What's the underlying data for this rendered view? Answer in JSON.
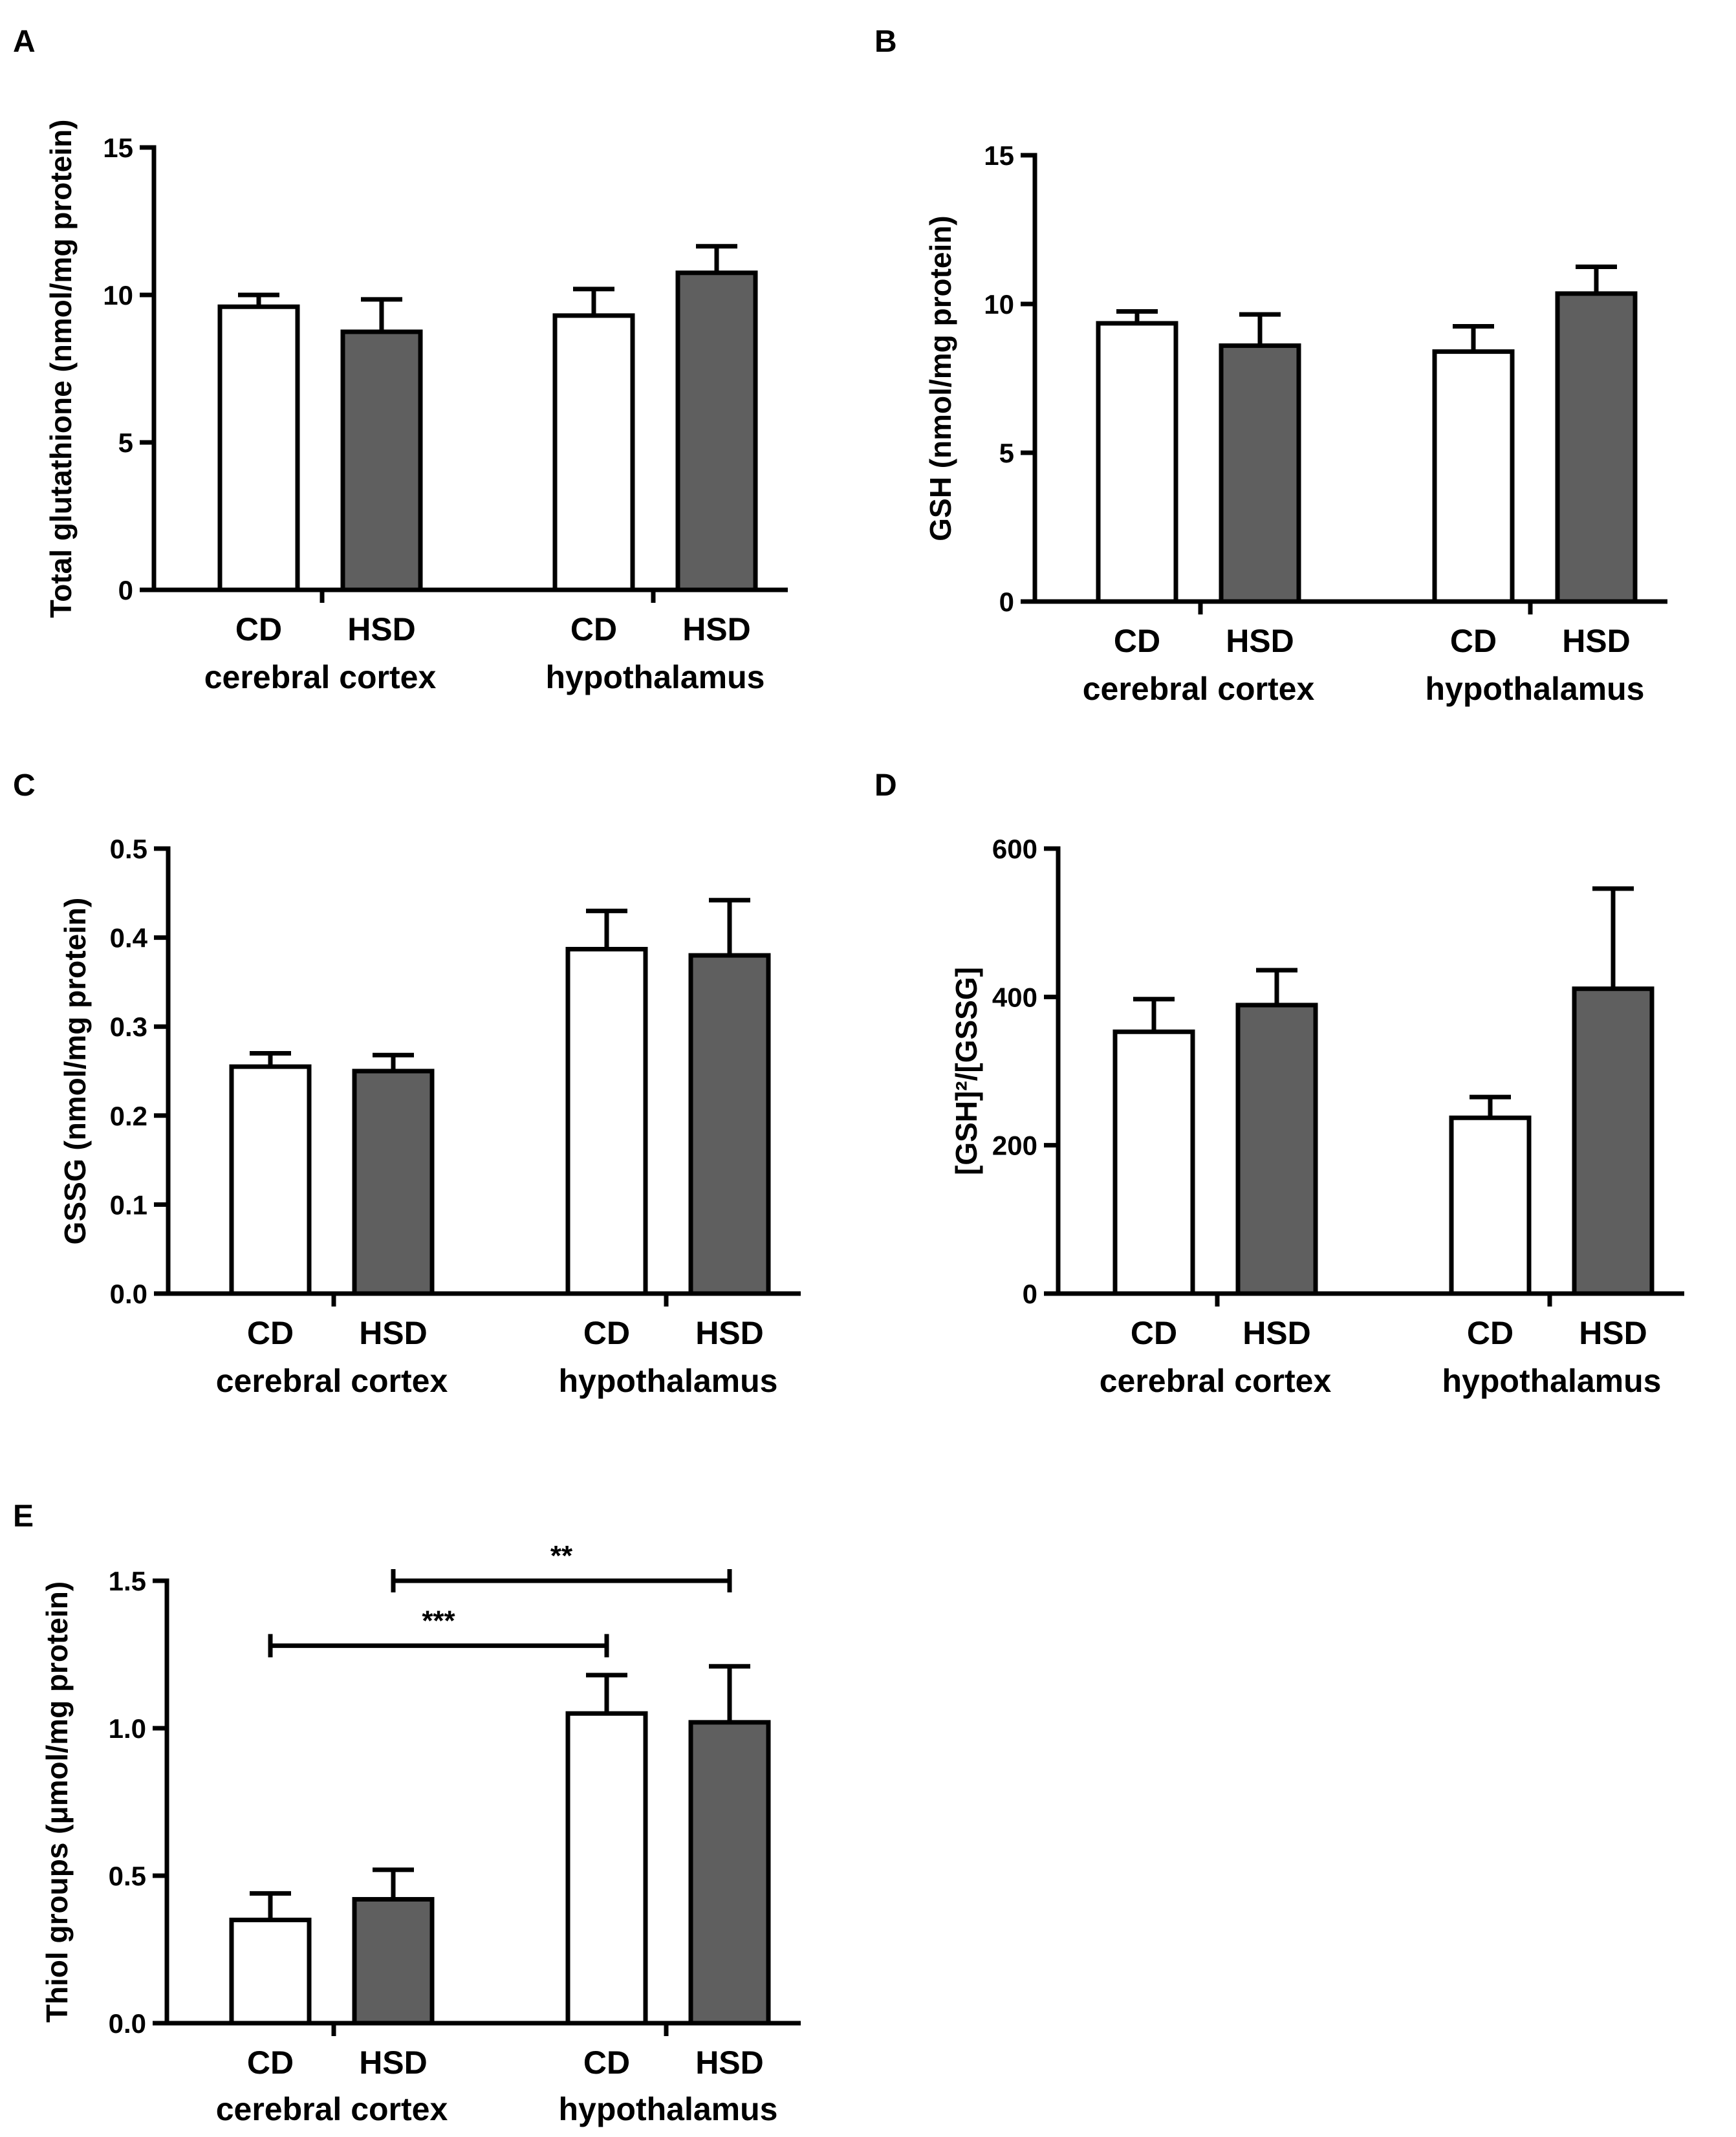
{
  "chart_data": [
    {
      "panel": "A",
      "type": "bar",
      "ylabel": "Total glutathione (nmol/mg protein)",
      "ylim": [
        0,
        15
      ],
      "yticks": [
        "0",
        "5",
        "10",
        "15"
      ],
      "groups": [
        {
          "region": "cerebral cortex",
          "bars": [
            {
              "category": "CD",
              "series": "CD",
              "value": 9.6,
              "error": 0.4
            },
            {
              "category": "HSD",
              "series": "HSD",
              "value": 8.75,
              "error": 1.1
            }
          ]
        },
        {
          "region": "hypothalamus",
          "bars": [
            {
              "category": "CD",
              "series": "CD",
              "value": 9.3,
              "error": 0.9
            },
            {
              "category": "HSD",
              "series": "HSD",
              "value": 10.75,
              "error": 0.9
            }
          ]
        }
      ],
      "significance": []
    },
    {
      "panel": "B",
      "type": "bar",
      "ylabel": "GSH (nmol/mg protein)",
      "ylim": [
        0,
        15
      ],
      "yticks": [
        "0",
        "5",
        "10",
        "15"
      ],
      "groups": [
        {
          "region": "cerebral cortex",
          "bars": [
            {
              "category": "CD",
              "series": "CD",
              "value": 9.35,
              "error": 0.4
            },
            {
              "category": "HSD",
              "series": "HSD",
              "value": 8.6,
              "error": 1.05
            }
          ]
        },
        {
          "region": "hypothalamus",
          "bars": [
            {
              "category": "CD",
              "series": "CD",
              "value": 8.4,
              "error": 0.85
            },
            {
              "category": "HSD",
              "series": "HSD",
              "value": 10.35,
              "error": 0.9
            }
          ]
        }
      ],
      "significance": []
    },
    {
      "panel": "C",
      "type": "bar",
      "ylabel": "GSSG (nmol/mg protein)",
      "ylim": [
        0,
        0.5
      ],
      "yticks": [
        "0.0",
        "0.1",
        "0.2",
        "0.3",
        "0.4",
        "0.5"
      ],
      "groups": [
        {
          "region": "cerebral cortex",
          "bars": [
            {
              "category": "CD",
              "series": "CD",
              "value": 0.255,
              "error": 0.015
            },
            {
              "category": "HSD",
              "series": "HSD",
              "value": 0.25,
              "error": 0.018
            }
          ]
        },
        {
          "region": "hypothalamus",
          "bars": [
            {
              "category": "CD",
              "series": "CD",
              "value": 0.387,
              "error": 0.043
            },
            {
              "category": "HSD",
              "series": "HSD",
              "value": 0.38,
              "error": 0.062
            }
          ]
        }
      ],
      "significance": []
    },
    {
      "panel": "D",
      "type": "bar",
      "ylabel": "[GSH]²/[GSSG]",
      "ylim": [
        0,
        600
      ],
      "yticks": [
        "0",
        "200",
        "400",
        "600"
      ],
      "groups": [
        {
          "region": "cerebral cortex",
          "bars": [
            {
              "category": "CD",
              "series": "CD",
              "value": 353,
              "error": 44
            },
            {
              "category": "HSD",
              "series": "HSD",
              "value": 389,
              "error": 47
            }
          ]
        },
        {
          "region": "hypothalamus",
          "bars": [
            {
              "category": "CD",
              "series": "CD",
              "value": 237,
              "error": 28
            },
            {
              "category": "HSD",
              "series": "HSD",
              "value": 411,
              "error": 135
            }
          ]
        }
      ],
      "significance": []
    },
    {
      "panel": "E",
      "type": "bar",
      "ylabel": "Thiol groups (μmol/mg protein)",
      "ylim": [
        0,
        1.5
      ],
      "yticks": [
        "0.0",
        "0.5",
        "1.0",
        "1.5"
      ],
      "groups": [
        {
          "region": "cerebral cortex",
          "bars": [
            {
              "category": "CD",
              "series": "CD",
              "value": 0.35,
              "error": 0.09
            },
            {
              "category": "HSD",
              "series": "HSD",
              "value": 0.42,
              "error": 0.1
            }
          ]
        },
        {
          "region": "hypothalamus",
          "bars": [
            {
              "category": "CD",
              "series": "CD",
              "value": 1.05,
              "error": 0.13
            },
            {
              "category": "HSD",
              "series": "HSD",
              "value": 1.02,
              "error": 0.19
            }
          ]
        }
      ],
      "significance": [
        {
          "label": "***",
          "from_bar": 0,
          "to_bar": 2,
          "value": 1.28
        },
        {
          "label": "**",
          "from_bar": 1,
          "to_bar": 3,
          "value": 1.5
        }
      ]
    }
  ],
  "series_colors": {
    "CD": "#ffffff",
    "HSD": "#5f5f5f"
  }
}
